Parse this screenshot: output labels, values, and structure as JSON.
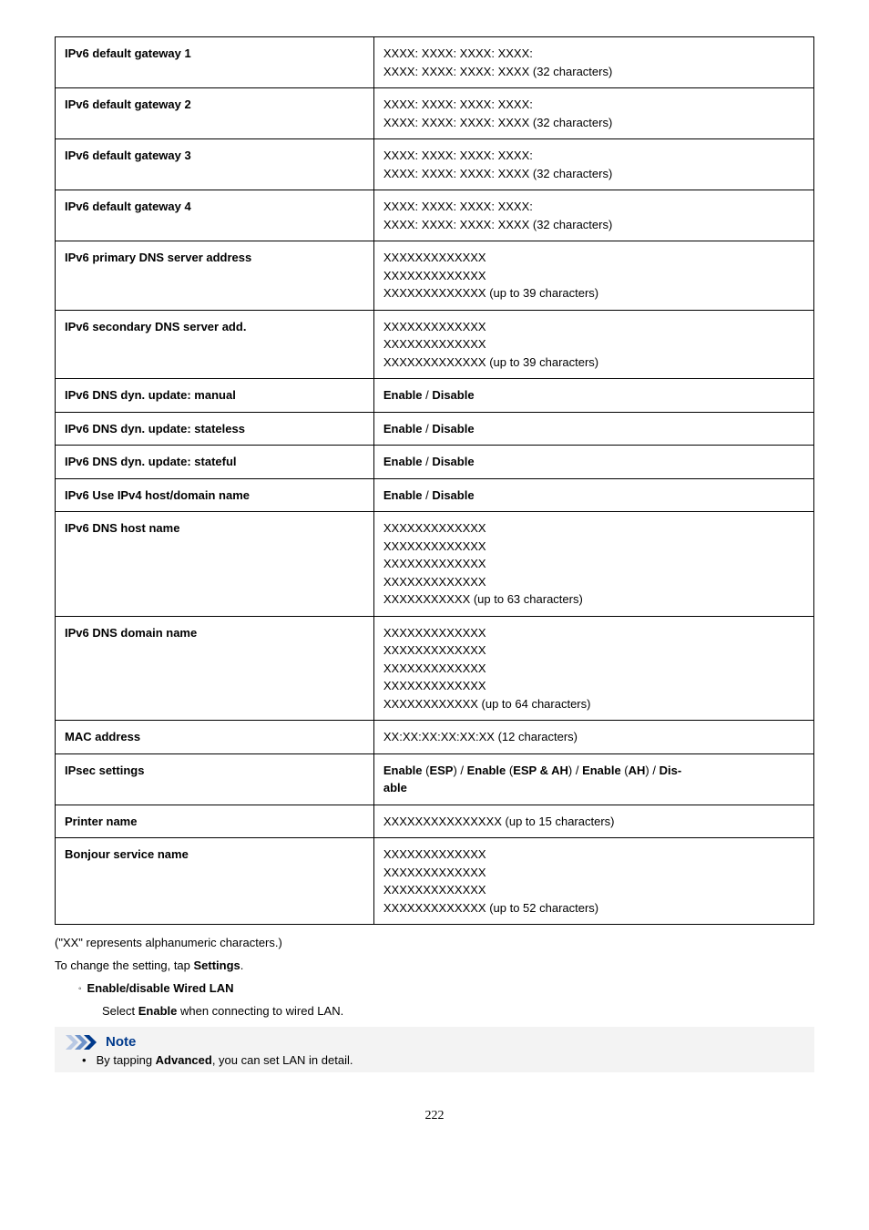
{
  "table": {
    "rows": [
      {
        "label": "IPv6 default gateway 1",
        "value_lines": [
          "XXXX: XXXX: XXXX: XXXX:",
          "XXXX: XXXX: XXXX: XXXX (32 characters)"
        ]
      },
      {
        "label": "IPv6 default gateway 2",
        "value_lines": [
          "XXXX: XXXX: XXXX: XXXX:",
          "XXXX: XXXX: XXXX: XXXX (32 characters)"
        ]
      },
      {
        "label": "IPv6 default gateway 3",
        "value_lines": [
          "XXXX: XXXX: XXXX: XXXX:",
          "XXXX: XXXX: XXXX: XXXX (32 characters)"
        ]
      },
      {
        "label": "IPv6 default gateway 4",
        "value_lines": [
          "XXXX: XXXX: XXXX: XXXX:",
          "XXXX: XXXX: XXXX: XXXX (32 characters)"
        ]
      },
      {
        "label": "IPv6 primary DNS server address",
        "value_lines": [
          "XXXXXXXXXXXXX",
          "XXXXXXXXXXXXX",
          "XXXXXXXXXXXXX (up to 39 characters)"
        ]
      },
      {
        "label": "IPv6 secondary DNS server add.",
        "value_lines": [
          "XXXXXXXXXXXXX",
          "XXXXXXXXXXXXX",
          "XXXXXXXXXXXXX (up to 39 characters)"
        ]
      },
      {
        "label": "IPv6 DNS dyn. update: manual",
        "value_bold": "Enable / Disable"
      },
      {
        "label": "IPv6 DNS dyn. update: stateless",
        "value_bold": "Enable / Disable"
      },
      {
        "label": "IPv6 DNS dyn. update: stateful",
        "value_bold": "Enable / Disable"
      },
      {
        "label": "IPv6 Use IPv4 host/domain name",
        "value_bold": "Enable / Disable"
      },
      {
        "label": "IPv6 DNS host name",
        "value_lines": [
          "XXXXXXXXXXXXX",
          "XXXXXXXXXXXXX",
          "XXXXXXXXXXXXX",
          "XXXXXXXXXXXXX",
          "XXXXXXXXXXX (up to 63 characters)"
        ]
      },
      {
        "label": "IPv6 DNS domain name",
        "value_lines": [
          "XXXXXXXXXXXXX",
          "XXXXXXXXXXXXX",
          "XXXXXXXXXXXXX",
          "XXXXXXXXXXXXX",
          "XXXXXXXXXXXX (up to 64 characters)"
        ]
      },
      {
        "label": "MAC address",
        "value_lines": [
          "XX:XX:XX:XX:XX:XX (12 characters)"
        ]
      },
      {
        "label": "IPsec settings",
        "value_rich": [
          {
            "t": "Enable",
            "b": true
          },
          {
            "t": " (",
            "b": false
          },
          {
            "t": "ESP",
            "b": true
          },
          {
            "t": ") / ",
            "b": false
          },
          {
            "t": "Enable",
            "b": true
          },
          {
            "t": " (",
            "b": false
          },
          {
            "t": "ESP & AH",
            "b": true
          },
          {
            "t": ") / ",
            "b": false
          },
          {
            "t": "Enable",
            "b": true
          },
          {
            "t": " (",
            "b": false
          },
          {
            "t": "AH",
            "b": true
          },
          {
            "t": ") / ",
            "b": false
          },
          {
            "t": "Dis-able",
            "b": true
          }
        ],
        "split_last": true
      },
      {
        "label": "Printer name",
        "value_lines": [
          "XXXXXXXXXXXXXXX (up to 15 characters)"
        ]
      },
      {
        "label": "Bonjour service name",
        "value_lines": [
          "XXXXXXXXXXXXX",
          "XXXXXXXXXXXXX",
          "XXXXXXXXXXXXX",
          "XXXXXXXXXXXXX (up to 52 characters)"
        ]
      }
    ]
  },
  "footnote": "(\"XX\" represents alphanumeric characters.)",
  "change_prefix": "To change the setting, tap ",
  "change_bold": "Settings",
  "change_suffix": ".",
  "sub_item": "Enable/disable Wired LAN",
  "sub_desc_prefix": "Select ",
  "sub_desc_bold": "Enable",
  "sub_desc_suffix": " when connecting to wired LAN.",
  "note_title": "Note",
  "note_bullet_prefix": "By tapping ",
  "note_bullet_bold": "Advanced",
  "note_bullet_suffix": ", you can set LAN in detail.",
  "page_number": "222",
  "colors": {
    "note_bg": "#f3f3f3",
    "note_blue": "#003a8c"
  }
}
